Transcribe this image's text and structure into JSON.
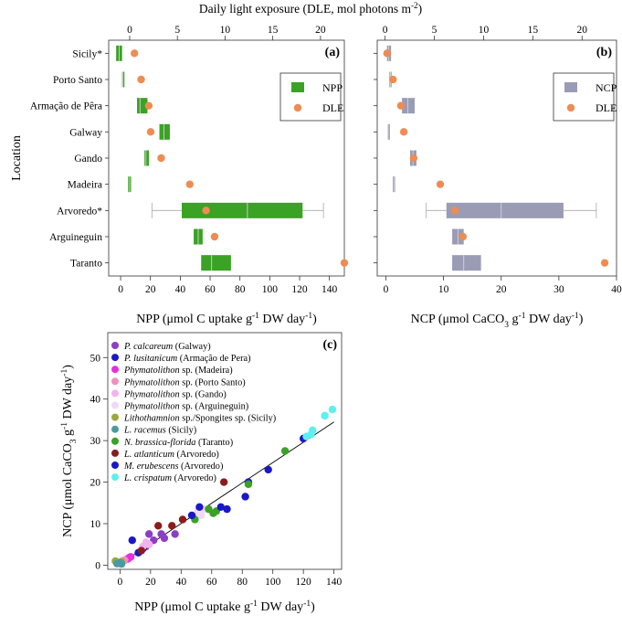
{
  "colors": {
    "npp": "#3aa224",
    "ncp": "#9a9cb6",
    "dle": "#ee8c52",
    "axis": "#333333"
  },
  "chart_data": [
    {
      "id": "a",
      "type": "boxplot",
      "panel_label": "(a)",
      "xlabel": "NPP (μmol C uptake g-1 DW day-1)",
      "top_axis_label": "Daily light exposure (DLE, mol photons m-2)",
      "ylabel": "Location",
      "xlim": [
        -8,
        150
      ],
      "x_ticks": [
        0,
        20,
        40,
        60,
        80,
        100,
        120,
        140
      ],
      "top_xlim": [
        -2.2,
        22.5
      ],
      "top_ticks": [
        0,
        5,
        10,
        15,
        20
      ],
      "categories": [
        "Sicily*",
        "Porto Santo",
        "Armação de Pêra",
        "Galway",
        "Gando",
        "Madeira",
        "Arvoredo*",
        "Arguineguin",
        "Taranto"
      ],
      "legend": [
        "NPP",
        "DLE"
      ],
      "boxes": [
        {
          "location": "Sicily*",
          "whisker_low": -3,
          "q1": -3,
          "median": -1,
          "q3": 1,
          "whisker_high": 1
        },
        {
          "location": "Porto Santo",
          "whisker_low": 1,
          "q1": 1,
          "median": 1.5,
          "q3": 2,
          "whisker_high": 2
        },
        {
          "location": "Armação de Pêra",
          "whisker_low": 11,
          "q1": 11,
          "median": 13,
          "q3": 18,
          "whisker_high": 18
        },
        {
          "location": "Galway",
          "whisker_low": 26,
          "q1": 26,
          "median": 29,
          "q3": 33,
          "whisker_high": 33
        },
        {
          "location": "Gando",
          "whisker_low": 16,
          "q1": 16,
          "median": 17,
          "q3": 19,
          "whisker_high": 19
        },
        {
          "location": "Madeira",
          "whisker_low": 5,
          "q1": 5,
          "median": 6,
          "q3": 7,
          "whisker_high": 7
        },
        {
          "location": "Arvoredo*",
          "whisker_low": 21,
          "q1": 41,
          "median": 85,
          "q3": 122,
          "whisker_high": 136
        },
        {
          "location": "Arguineguin",
          "whisker_low": 49,
          "q1": 49,
          "median": 52,
          "q3": 55,
          "whisker_high": 55
        },
        {
          "location": "Taranto",
          "whisker_low": 54,
          "q1": 54,
          "median": 61,
          "q3": 74,
          "whisker_high": 74
        }
      ],
      "dle": [
        0.5,
        1.2,
        2.0,
        2.2,
        3.3,
        6.3,
        8.0,
        8.9,
        22.5
      ]
    },
    {
      "id": "b",
      "type": "boxplot",
      "panel_label": "(b)",
      "xlabel": "NCP (μmol CaCO3 g-1 DW day-1)",
      "top_axis_label": "",
      "xlim": [
        -1.5,
        40
      ],
      "x_ticks": [
        0,
        10,
        20,
        30,
        40
      ],
      "top_xlim": [
        -0.8,
        23.5
      ],
      "top_ticks": [
        0,
        5,
        10,
        15,
        20
      ],
      "categories": [
        "Sicily*",
        "Porto Santo",
        "Armação de Pêra",
        "Galway",
        "Gando",
        "Madeira",
        "Arvoredo*",
        "Arguineguin",
        "Taranto"
      ],
      "legend": [
        "NCP",
        "DLE"
      ],
      "boxes": [
        {
          "location": "Sicily*",
          "whisker_low": 0.2,
          "q1": 0.2,
          "median": 0.5,
          "q3": 0.9,
          "whisker_high": 0.9
        },
        {
          "location": "Porto Santo",
          "whisker_low": 0.6,
          "q1": 0.6,
          "median": 0.8,
          "q3": 1.0,
          "whisker_high": 1.0
        },
        {
          "location": "Armação de Pêra",
          "whisker_low": 2.8,
          "q1": 2.8,
          "median": 3.8,
          "q3": 5.0,
          "whisker_high": 5.0
        },
        {
          "location": "Galway",
          "whisker_low": 0.3,
          "q1": 0.3,
          "median": 0.4,
          "q3": 0.5,
          "whisker_high": 0.5
        },
        {
          "location": "Gando",
          "whisker_low": 4.2,
          "q1": 4.2,
          "median": 4.7,
          "q3": 5.3,
          "whisker_high": 5.3
        },
        {
          "location": "Madeira",
          "whisker_low": 1.2,
          "q1": 1.2,
          "median": 1.4,
          "q3": 1.6,
          "whisker_high": 1.6
        },
        {
          "location": "Arvoredo*",
          "whisker_low": 7,
          "q1": 10.5,
          "median": 20,
          "q3": 30.8,
          "whisker_high": 36.5
        },
        {
          "location": "Arguineguin",
          "whisker_low": 11.5,
          "q1": 11.5,
          "median": 12.5,
          "q3": 13.5,
          "whisker_high": 13.5
        },
        {
          "location": "Taranto",
          "whisker_low": 11.5,
          "q1": 11.5,
          "median": 13.5,
          "q3": 16.5,
          "whisker_high": 16.5
        }
      ],
      "dle": [
        0.2,
        0.8,
        1.6,
        1.9,
        2.9,
        5.6,
        7.1,
        7.9,
        22.3
      ]
    },
    {
      "id": "c",
      "type": "scatter",
      "panel_label": "(c)",
      "xlabel": "NPP (μmol C uptake g-1 DW day-1)",
      "ylabel": "NCP (μmol CaCO3 g-1 DW day-1)",
      "xlim": [
        -8,
        145
      ],
      "ylim": [
        -1,
        56
      ],
      "x_ticks": [
        0,
        20,
        40,
        60,
        80,
        100,
        120,
        140
      ],
      "y_ticks": [
        0,
        10,
        20,
        30,
        40,
        50
      ],
      "fit_line": {
        "x": [
          -1,
          140
        ],
        "y": [
          0,
          34.5
        ]
      },
      "series": [
        {
          "species": "P. calcareum",
          "site": " (Galway)",
          "color": "#8c3fc4",
          "x": [
            17,
            19,
            22,
            27,
            29,
            36
          ],
          "y": [
            4.5,
            7.5,
            6,
            7.5,
            6.5,
            7.5
          ]
        },
        {
          "species": "P. lusitanicum",
          "site": " (Armação de Pera)",
          "color": "#1a18c6",
          "x": [
            8,
            12,
            15,
            70,
            82,
            84,
            97,
            120
          ],
          "y": [
            6,
            3,
            4,
            13.5,
            16.5,
            20,
            23,
            30.5
          ]
        },
        {
          "species": "Phymatolithon",
          "site": " sp. (Madeira)",
          "color": "#e82ee0",
          "x": [
            3,
            5,
            6,
            7
          ],
          "y": [
            1.2,
            1.5,
            1.8,
            2.0
          ]
        },
        {
          "species": "Phymatolithon",
          "site": " sp. (Porto Santo)",
          "color": "#f28fbe",
          "x": [
            1,
            2,
            3
          ],
          "y": [
            0.9,
            1.0,
            1.2
          ]
        },
        {
          "species": "Phymatolithon",
          "site": " sp. (Gando)",
          "color": "#f2b4ec",
          "x": [
            15,
            17,
            19
          ],
          "y": [
            4.5,
            5.5,
            5.0
          ]
        },
        {
          "species": "Phymatolithon",
          "site": " sp. (Arguineguin)",
          "color": "#f0d9f6",
          "x": [
            49,
            51,
            53,
            55
          ],
          "y": [
            11.5,
            13,
            12,
            13.5
          ]
        },
        {
          "species": "Lithothamnion",
          "site": " sp./Spongites sp. (Sicily)",
          "color": "#9ea83a",
          "x": [
            -3,
            -1,
            0,
            1
          ],
          "y": [
            1.0,
            0.6,
            0.4,
            0.8
          ]
        },
        {
          "species": "L. racemus",
          "site": " (Sicily)",
          "color": "#4b9aa2",
          "x": [
            -2,
            0,
            1
          ],
          "y": [
            0.4,
            0.6,
            0.3
          ]
        },
        {
          "species": "N. brassica-florida",
          "site": " (Taranto)",
          "color": "#3aa224",
          "x": [
            49,
            58,
            61,
            63,
            84,
            108
          ],
          "y": [
            11,
            13.5,
            12.5,
            13,
            19.5,
            27.5
          ]
        },
        {
          "species": "L. atlanticum",
          "site": " (Arvoredo)",
          "color": "#8b1c1c",
          "x": [
            14,
            25,
            34,
            41,
            68
          ],
          "y": [
            3.5,
            9.5,
            9.5,
            11,
            20
          ]
        },
        {
          "species": "M. erubescens",
          "site": " (Arvoredo)",
          "color": "#1a18c6",
          "x": [
            47,
            52,
            66
          ],
          "y": [
            12,
            14,
            14
          ]
        },
        {
          "species": "L. crispatum",
          "site": " (Arvoredo)",
          "color": "#5cf0ee",
          "x": [
            122,
            125,
            126,
            134,
            139
          ],
          "y": [
            31,
            31.5,
            32.5,
            36,
            37.5
          ]
        }
      ]
    }
  ]
}
